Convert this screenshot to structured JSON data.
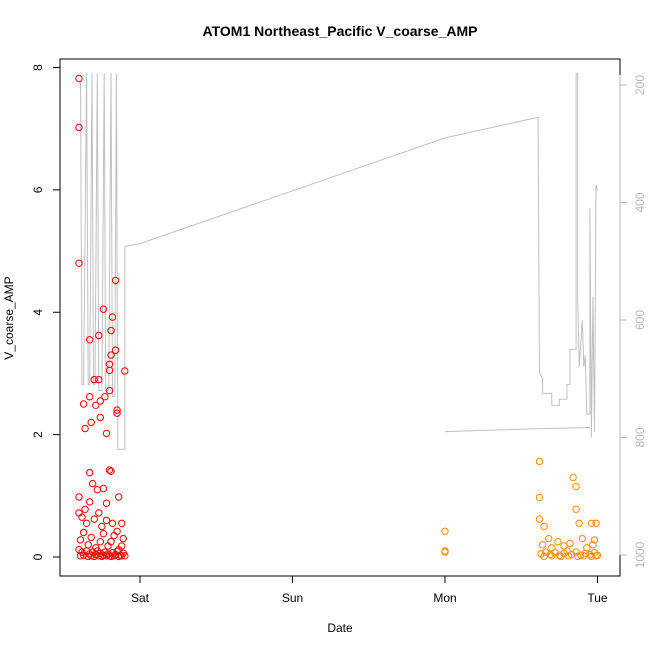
{
  "chart_data": {
    "type": "scatter",
    "title": "ATOM1 Northeast_Pacific V_coarse_AMP",
    "xlabel": "Date",
    "ylabel": "V_coarse_AMP",
    "x_ticks": [
      "Sat",
      "Sun",
      "Mon",
      "Tue"
    ],
    "y_ticks": [
      "0",
      "2",
      "4",
      "6",
      "8"
    ],
    "ylim": [
      0,
      8
    ],
    "y2_ticks": [
      "200",
      "400",
      "600",
      "800",
      "1000"
    ],
    "y2lim": [
      1000,
      180
    ],
    "y2_reversed": true,
    "xlim_days": [
      -0.45,
      3.1
    ],
    "colors": {
      "series1": "#ff0000",
      "series2": "#ff8c00",
      "depth_line": "#c0c0c0",
      "axes": "#000000",
      "right_axis": "#b8b8b8"
    },
    "series": [
      {
        "color": "#ff0000",
        "marker": "circle-open",
        "points": [
          [
            -0.4,
            7.82
          ],
          [
            -0.4,
            7.02
          ],
          [
            -0.4,
            4.8
          ],
          [
            -0.4,
            0.98
          ],
          [
            -0.4,
            0.72
          ],
          [
            -0.37,
            2.5
          ],
          [
            -0.36,
            2.1
          ],
          [
            -0.33,
            3.55
          ],
          [
            -0.33,
            2.62
          ],
          [
            -0.32,
            2.2
          ],
          [
            -0.3,
            2.9
          ],
          [
            -0.29,
            2.48
          ],
          [
            -0.27,
            3.62
          ],
          [
            -0.26,
            2.55
          ],
          [
            -0.26,
            2.28
          ],
          [
            -0.27,
            2.9
          ],
          [
            -0.24,
            4.05
          ],
          [
            -0.23,
            2.62
          ],
          [
            -0.22,
            2.02
          ],
          [
            -0.2,
            3.05
          ],
          [
            -0.2,
            3.15
          ],
          [
            -0.19,
            3.3
          ],
          [
            -0.19,
            3.7
          ],
          [
            -0.18,
            3.92
          ],
          [
            -0.2,
            2.72
          ],
          [
            -0.16,
            4.52
          ],
          [
            -0.16,
            3.38
          ],
          [
            -0.15,
            2.35
          ],
          [
            -0.15,
            2.4
          ],
          [
            -0.1,
            3.04
          ],
          [
            -0.33,
            1.38
          ],
          [
            -0.31,
            1.2
          ],
          [
            -0.28,
            1.1
          ],
          [
            -0.24,
            1.12
          ],
          [
            -0.2,
            1.42
          ],
          [
            -0.19,
            1.4
          ],
          [
            -0.14,
            0.98
          ],
          [
            -0.22,
            0.88
          ],
          [
            -0.33,
            0.9
          ],
          [
            -0.36,
            0.78
          ],
          [
            -0.38,
            0.65
          ],
          [
            -0.35,
            0.55
          ],
          [
            -0.3,
            0.62
          ],
          [
            -0.27,
            0.72
          ],
          [
            -0.25,
            0.5
          ],
          [
            -0.22,
            0.6
          ],
          [
            -0.18,
            0.55
          ],
          [
            -0.15,
            0.42
          ],
          [
            -0.12,
            0.55
          ],
          [
            -0.11,
            0.3
          ],
          [
            -0.39,
            0.28
          ],
          [
            -0.37,
            0.4
          ],
          [
            -0.34,
            0.2
          ],
          [
            -0.32,
            0.32
          ],
          [
            -0.29,
            0.15
          ],
          [
            -0.26,
            0.25
          ],
          [
            -0.24,
            0.38
          ],
          [
            -0.21,
            0.18
          ],
          [
            -0.19,
            0.25
          ],
          [
            -0.17,
            0.35
          ],
          [
            -0.14,
            0.12
          ],
          [
            -0.12,
            0.18
          ],
          [
            -0.4,
            0.12
          ],
          [
            -0.38,
            0.08
          ],
          [
            -0.35,
            0.1
          ],
          [
            -0.33,
            0.05
          ],
          [
            -0.31,
            0.08
          ],
          [
            -0.29,
            0.04
          ],
          [
            -0.28,
            0.1
          ],
          [
            -0.26,
            0.06
          ],
          [
            -0.24,
            0.03
          ],
          [
            -0.23,
            0.08
          ],
          [
            -0.21,
            0.05
          ],
          [
            -0.2,
            0.02
          ],
          [
            -0.18,
            0.07
          ],
          [
            -0.16,
            0.04
          ],
          [
            -0.15,
            0.09
          ],
          [
            -0.13,
            0.03
          ],
          [
            -0.11,
            0.06
          ],
          [
            -0.1,
            0.02
          ],
          [
            -0.39,
            0.02
          ],
          [
            -0.37,
            0.03
          ],
          [
            -0.34,
            0.01
          ],
          [
            -0.32,
            0.02
          ],
          [
            -0.3,
            0.01
          ],
          [
            -0.27,
            0.02
          ],
          [
            -0.25,
            0.01
          ],
          [
            -0.22,
            0.02
          ],
          [
            -0.19,
            0.01
          ],
          [
            -0.17,
            0.02
          ],
          [
            -0.14,
            0.01
          ],
          [
            -0.12,
            0.02
          ]
        ]
      },
      {
        "color": "#ff8c00",
        "marker": "circle-open",
        "points": [
          [
            2.0,
            0.42
          ],
          [
            2.0,
            0.1
          ],
          [
            2.0,
            0.08
          ],
          [
            2.62,
            1.56
          ],
          [
            2.62,
            0.97
          ],
          [
            2.62,
            0.62
          ],
          [
            2.65,
            0.5
          ],
          [
            2.68,
            0.3
          ],
          [
            2.84,
            1.3
          ],
          [
            2.86,
            1.15
          ],
          [
            2.86,
            0.78
          ],
          [
            2.88,
            0.55
          ],
          [
            2.96,
            0.55
          ],
          [
            2.99,
            0.55
          ],
          [
            2.98,
            0.28
          ],
          [
            2.64,
            0.2
          ],
          [
            2.7,
            0.15
          ],
          [
            2.74,
            0.25
          ],
          [
            2.78,
            0.18
          ],
          [
            2.82,
            0.22
          ],
          [
            2.9,
            0.3
          ],
          [
            2.93,
            0.15
          ],
          [
            2.97,
            0.2
          ],
          [
            2.63,
            0.05
          ],
          [
            2.66,
            0.08
          ],
          [
            2.69,
            0.04
          ],
          [
            2.72,
            0.07
          ],
          [
            2.75,
            0.03
          ],
          [
            2.78,
            0.06
          ],
          [
            2.8,
            0.1
          ],
          [
            2.83,
            0.04
          ],
          [
            2.86,
            0.08
          ],
          [
            2.89,
            0.03
          ],
          [
            2.92,
            0.06
          ],
          [
            2.95,
            0.04
          ],
          [
            2.98,
            0.07
          ],
          [
            3.0,
            0.03
          ],
          [
            2.65,
            0.01
          ],
          [
            2.7,
            0.02
          ],
          [
            2.76,
            0.01
          ],
          [
            2.81,
            0.02
          ],
          [
            2.87,
            0.01
          ],
          [
            2.91,
            0.02
          ],
          [
            2.96,
            0.01
          ],
          [
            2.99,
            0.02
          ]
        ]
      }
    ],
    "depth_line": {
      "color": "#c0c0c0",
      "points": [
        [
          -0.4,
          195
        ],
        [
          -0.39,
          195
        ],
        [
          -0.38,
          710
        ],
        [
          -0.37,
          710
        ],
        [
          -0.35,
          180
        ],
        [
          -0.34,
          710
        ],
        [
          -0.33,
          710
        ],
        [
          -0.315,
          180
        ],
        [
          -0.305,
          710
        ],
        [
          -0.295,
          710
        ],
        [
          -0.28,
          180
        ],
        [
          -0.27,
          720
        ],
        [
          -0.25,
          720
        ],
        [
          -0.235,
          180
        ],
        [
          -0.225,
          720
        ],
        [
          -0.205,
          720
        ],
        [
          -0.19,
          180
        ],
        [
          -0.18,
          730
        ],
        [
          -0.165,
          730
        ],
        [
          -0.155,
          180
        ],
        [
          -0.145,
          820
        ],
        [
          -0.1,
          820
        ],
        [
          -0.1,
          475
        ],
        [
          0.0,
          470
        ],
        [
          1.0,
          380
        ],
        [
          2.0,
          290
        ],
        [
          2.61,
          255
        ],
        [
          2.62,
          690
        ],
        [
          2.64,
          700
        ],
        [
          2.64,
          725
        ],
        [
          2.7,
          725
        ],
        [
          2.7,
          745
        ],
        [
          2.75,
          745
        ],
        [
          2.75,
          735
        ],
        [
          2.8,
          735
        ],
        [
          2.8,
          710
        ],
        [
          2.82,
          710
        ],
        [
          2.82,
          650
        ],
        [
          2.86,
          650
        ],
        [
          2.86,
          180
        ],
        [
          2.87,
          180
        ],
        [
          2.87,
          560
        ],
        [
          2.88,
          680
        ],
        [
          2.9,
          600
        ],
        [
          2.91,
          680
        ],
        [
          2.92,
          660
        ],
        [
          2.93,
          760
        ],
        [
          2.95,
          760
        ],
        [
          2.95,
          410
        ],
        [
          2.96,
          800
        ],
        [
          2.97,
          560
        ],
        [
          2.98,
          790
        ],
        [
          2.99,
          370
        ],
        [
          3.0,
          380
        ]
      ],
      "tail": [
        [
          2.0,
          790
        ],
        [
          2.6,
          785
        ],
        [
          2.95,
          783
        ]
      ]
    }
  }
}
